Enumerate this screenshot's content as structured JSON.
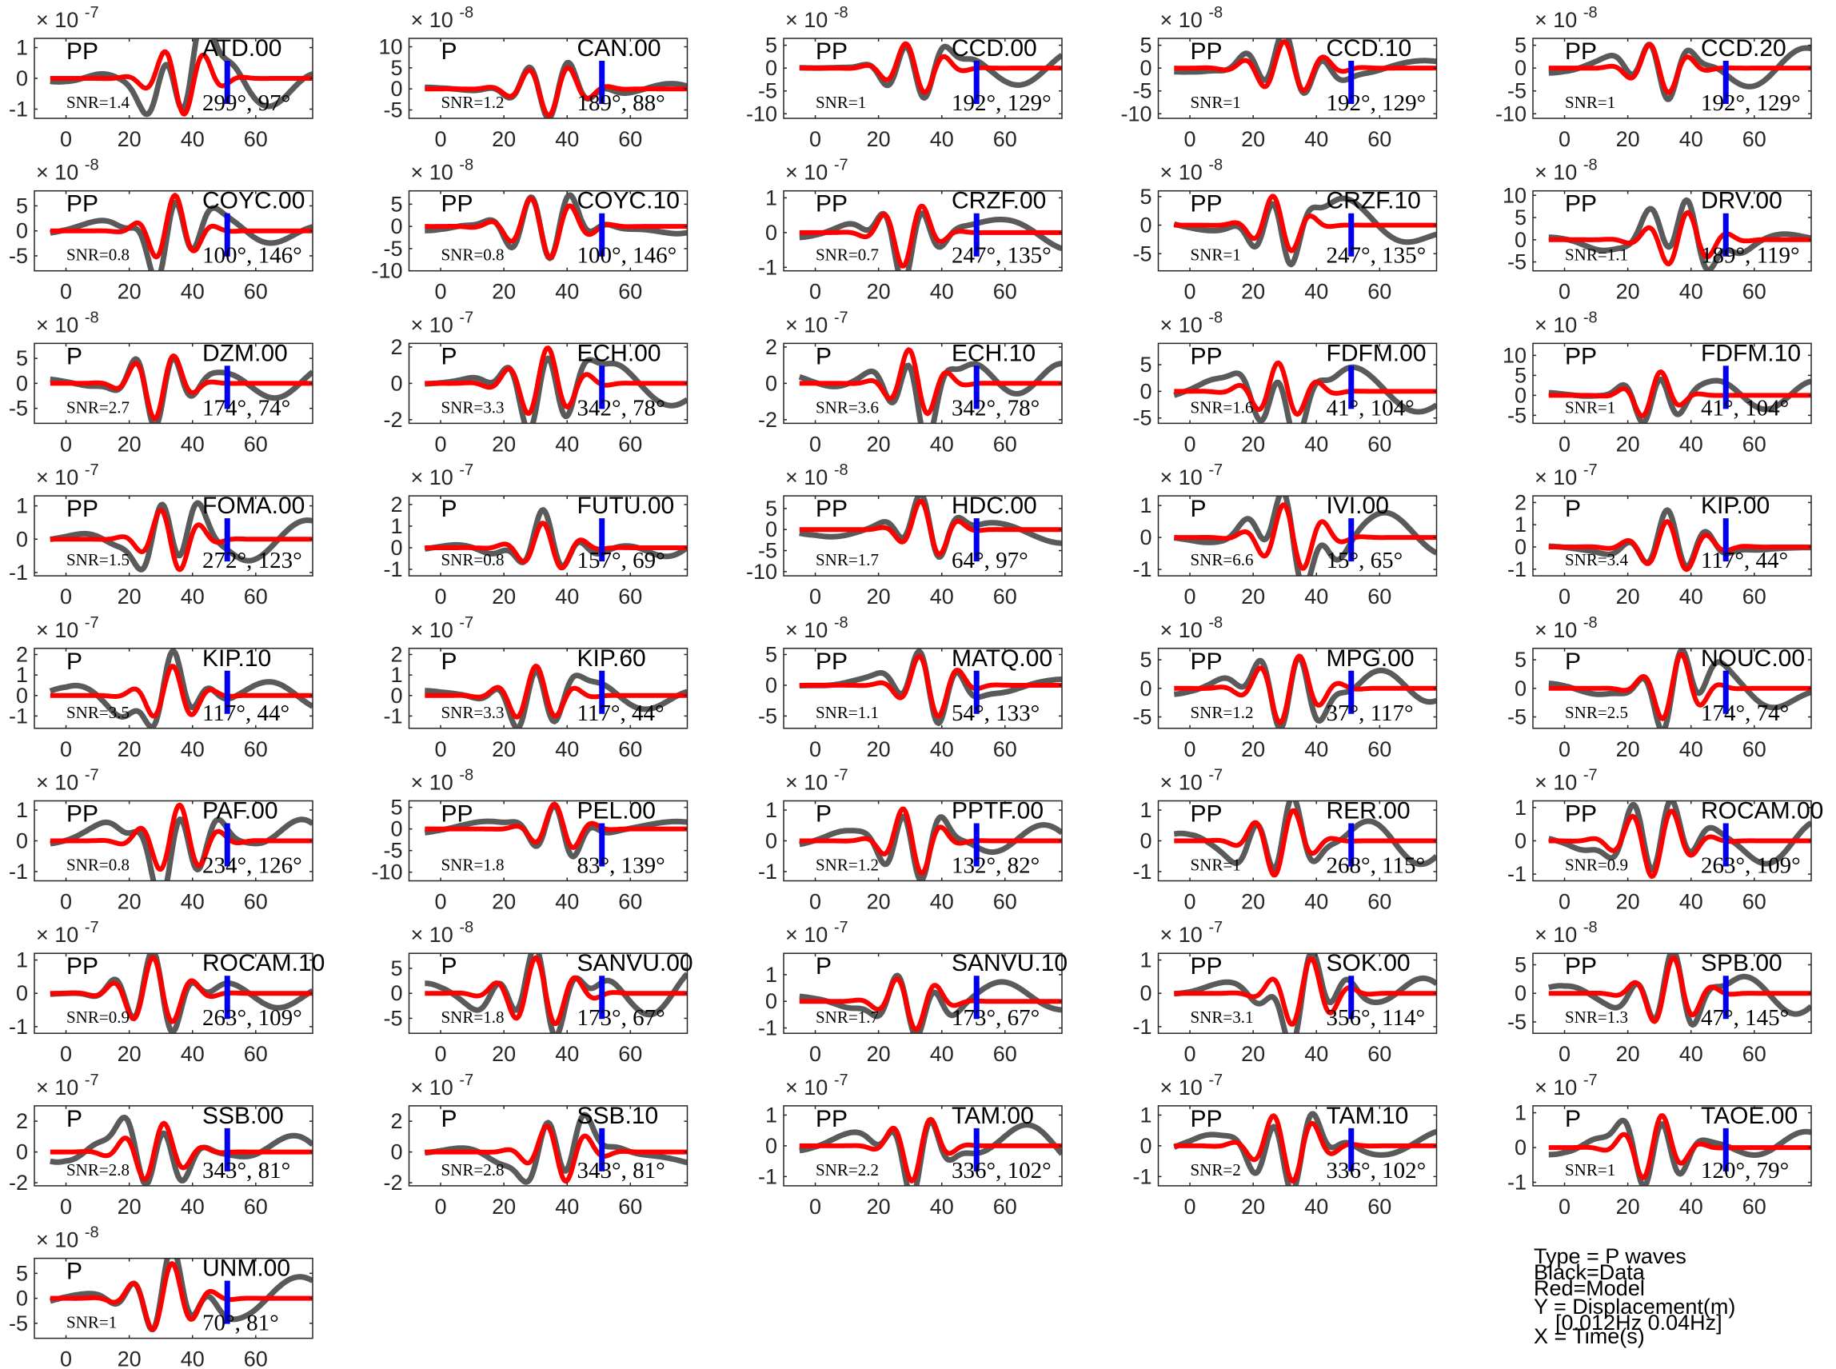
{
  "chart_data": {
    "type": "line",
    "xlabel": "",
    "ylabel": "",
    "xlim": [
      -10,
      78
    ],
    "x_ticks": [
      0,
      20,
      40,
      60
    ],
    "colors": {
      "data": "#5a5a5a",
      "model": "#ff0000",
      "marker": "#0000ee",
      "axes": "#262626"
    },
    "legend": {
      "placement": "bottom-right",
      "lines": [
        "Type = P waves",
        "Black=Data",
        "Red=Model",
        "Y = Displacement(m)",
        "[0.012Hz 0.04Hz]",
        "X = Time(s)"
      ]
    },
    "panels": [
      {
        "station": "ATD.00",
        "phase": "PP",
        "snr": "SNR=1.4",
        "az": "299°, 97°",
        "exp": "-7",
        "yticks": [
          -1,
          0,
          1
        ],
        "ylim": [
          -1.3,
          1.3
        ]
      },
      {
        "station": "CAN.00",
        "phase": "P",
        "snr": "SNR=1.2",
        "az": "189°, 88°",
        "exp": "-8",
        "yticks": [
          -5,
          0,
          5,
          10
        ],
        "ylim": [
          -7,
          12
        ]
      },
      {
        "station": "CCD.00",
        "phase": "PP",
        "snr": "SNR=1",
        "az": "192°, 129°",
        "exp": "-8",
        "yticks": [
          -10,
          -5,
          0,
          5
        ],
        "ylim": [
          -11,
          6.5
        ]
      },
      {
        "station": "CCD.10",
        "phase": "PP",
        "snr": "SNR=1",
        "az": "192°, 129°",
        "exp": "-8",
        "yticks": [
          -10,
          -5,
          0,
          5
        ],
        "ylim": [
          -11,
          6.5
        ]
      },
      {
        "station": "CCD.20",
        "phase": "PP",
        "snr": "SNR=1",
        "az": "192°, 129°",
        "exp": "-8",
        "yticks": [
          -10,
          -5,
          0,
          5
        ],
        "ylim": [
          -11,
          6.5
        ]
      },
      {
        "station": "COYC.00",
        "phase": "PP",
        "snr": "SNR=0.8",
        "az": "100°, 146°",
        "exp": "-8",
        "yticks": [
          -5,
          0,
          5
        ],
        "ylim": [
          -8,
          8
        ]
      },
      {
        "station": "COYC.10",
        "phase": "PP",
        "snr": "SNR=0.8",
        "az": "100°, 146°",
        "exp": "-8",
        "yticks": [
          -10,
          -5,
          0,
          5
        ],
        "ylim": [
          -10,
          8
        ]
      },
      {
        "station": "CRZF.00",
        "phase": "PP",
        "snr": "SNR=0.7",
        "az": "247°, 135°",
        "exp": "-7",
        "yticks": [
          -1,
          0,
          1
        ],
        "ylim": [
          -1.1,
          1.2
        ]
      },
      {
        "station": "CRZF.10",
        "phase": "PP",
        "snr": "SNR=1",
        "az": "247°, 135°",
        "exp": "-8",
        "yticks": [
          -5,
          0,
          5
        ],
        "ylim": [
          -8,
          6
        ]
      },
      {
        "station": "DRV.00",
        "phase": "PP",
        "snr": "SNR=1.1",
        "az": "189°, 119°",
        "exp": "-8",
        "yticks": [
          -5,
          0,
          5,
          10
        ],
        "ylim": [
          -7,
          11
        ]
      },
      {
        "station": "DZM.00",
        "phase": "P",
        "snr": "SNR=2.7",
        "az": "174°, 74°",
        "exp": "-8",
        "yticks": [
          -5,
          0,
          5
        ],
        "ylim": [
          -8,
          8
        ]
      },
      {
        "station": "ECH.00",
        "phase": "P",
        "snr": "SNR=3.3",
        "az": "342°, 78°",
        "exp": "-7",
        "yticks": [
          -2,
          0,
          2
        ],
        "ylim": [
          -2.2,
          2.2
        ]
      },
      {
        "station": "ECH.10",
        "phase": "P",
        "snr": "SNR=3.6",
        "az": "342°, 78°",
        "exp": "-7",
        "yticks": [
          -2,
          0,
          2
        ],
        "ylim": [
          -2.2,
          2.2
        ]
      },
      {
        "station": "FDFM.00",
        "phase": "PP",
        "snr": "SNR=1.6",
        "az": "41°, 104°",
        "exp": "-8",
        "yticks": [
          -5,
          0,
          5
        ],
        "ylim": [
          -6,
          9
        ]
      },
      {
        "station": "FDFM.10",
        "phase": "PP",
        "snr": "SNR=1",
        "az": "41°, 104°",
        "exp": "-8",
        "yticks": [
          -5,
          0,
          5,
          10
        ],
        "ylim": [
          -7,
          13
        ]
      },
      {
        "station": "FOMA.00",
        "phase": "PP",
        "snr": "SNR=1.5",
        "az": "272°, 123°",
        "exp": "-7",
        "yticks": [
          -1,
          0,
          1
        ],
        "ylim": [
          -1.1,
          1.3
        ]
      },
      {
        "station": "FUTU.00",
        "phase": "P",
        "snr": "SNR=0.8",
        "az": "157°, 69°",
        "exp": "-7",
        "yticks": [
          -1,
          0,
          1,
          2
        ],
        "ylim": [
          -1.3,
          2.4
        ]
      },
      {
        "station": "HDC.00",
        "phase": "PP",
        "snr": "SNR=1.7",
        "az": "64°, 97°",
        "exp": "-8",
        "yticks": [
          -10,
          -5,
          0,
          5
        ],
        "ylim": [
          -11,
          8
        ]
      },
      {
        "station": "IVI.00",
        "phase": "P",
        "snr": "SNR=6.6",
        "az": "15°, 65°",
        "exp": "-7",
        "yticks": [
          -1,
          0,
          1
        ],
        "ylim": [
          -1.2,
          1.3
        ]
      },
      {
        "station": "KIP.00",
        "phase": "P",
        "snr": "SNR=3.4",
        "az": "117°, 44°",
        "exp": "-7",
        "yticks": [
          -1,
          0,
          1,
          2
        ],
        "ylim": [
          -1.3,
          2.3
        ]
      },
      {
        "station": "KIP.10",
        "phase": "P",
        "snr": "SNR=3.5",
        "az": "117°, 44°",
        "exp": "-7",
        "yticks": [
          -1,
          0,
          1,
          2
        ],
        "ylim": [
          -1.6,
          2.3
        ]
      },
      {
        "station": "KIP.60",
        "phase": "P",
        "snr": "SNR=3.3",
        "az": "117°, 44°",
        "exp": "-7",
        "yticks": [
          -1,
          0,
          1,
          2
        ],
        "ylim": [
          -1.6,
          2.3
        ]
      },
      {
        "station": "MATQ.00",
        "phase": "PP",
        "snr": "SNR=1.1",
        "az": "54°, 133°",
        "exp": "-8",
        "yticks": [
          -5,
          0,
          5
        ],
        "ylim": [
          -7,
          6
        ]
      },
      {
        "station": "MPG.00",
        "phase": "PP",
        "snr": "SNR=1.2",
        "az": "37°, 117°",
        "exp": "-8",
        "yticks": [
          -5,
          0,
          5
        ],
        "ylim": [
          -7,
          7
        ]
      },
      {
        "station": "NOUC.00",
        "phase": "P",
        "snr": "SNR=2.5",
        "az": "174°, 74°",
        "exp": "-8",
        "yticks": [
          -5,
          0,
          5
        ],
        "ylim": [
          -7,
          7
        ]
      },
      {
        "station": "PAF.00",
        "phase": "PP",
        "snr": "SNR=0.8",
        "az": "234°, 126°",
        "exp": "-7",
        "yticks": [
          -1,
          0,
          1
        ],
        "ylim": [
          -1.3,
          1.3
        ]
      },
      {
        "station": "PEL.00",
        "phase": "PP",
        "snr": "SNR=1.8",
        "az": "83°, 139°",
        "exp": "-8",
        "yticks": [
          -10,
          -5,
          0,
          5
        ],
        "ylim": [
          -12,
          6.5
        ]
      },
      {
        "station": "PPTF.00",
        "phase": "P",
        "snr": "SNR=1.2",
        "az": "132°, 82°",
        "exp": "-7",
        "yticks": [
          -1,
          0,
          1
        ],
        "ylim": [
          -1.3,
          1.3
        ]
      },
      {
        "station": "RER.00",
        "phase": "PP",
        "snr": "SNR=1",
        "az": "268°, 115°",
        "exp": "-7",
        "yticks": [
          -1,
          0,
          1
        ],
        "ylim": [
          -1.3,
          1.3
        ]
      },
      {
        "station": "ROCAM.00",
        "phase": "PP",
        "snr": "SNR=0.9",
        "az": "263°, 109°",
        "exp": "-7",
        "yticks": [
          -1,
          0,
          1
        ],
        "ylim": [
          -1.2,
          1.2
        ]
      },
      {
        "station": "ROCAM.10",
        "phase": "PP",
        "snr": "SNR=0.9",
        "az": "263°, 109°",
        "exp": "-7",
        "yticks": [
          -1,
          0,
          1
        ],
        "ylim": [
          -1.2,
          1.2
        ]
      },
      {
        "station": "SANVU.00",
        "phase": "P",
        "snr": "SNR=1.8",
        "az": "173°, 67°",
        "exp": "-8",
        "yticks": [
          -5,
          0,
          5
        ],
        "ylim": [
          -8,
          8
        ]
      },
      {
        "station": "SANVU.10",
        "phase": "P",
        "snr": "SNR=1.7",
        "az": "173°, 67°",
        "exp": "-7",
        "yticks": [
          -1,
          0,
          1
        ],
        "ylim": [
          -1.2,
          1.8
        ]
      },
      {
        "station": "SOK.00",
        "phase": "PP",
        "snr": "SNR=3.1",
        "az": "356°, 114°",
        "exp": "-7",
        "yticks": [
          -1,
          0,
          1
        ],
        "ylim": [
          -1.2,
          1.2
        ]
      },
      {
        "station": "SPB.00",
        "phase": "PP",
        "snr": "SNR=1.3",
        "az": "47°, 145°",
        "exp": "-8",
        "yticks": [
          -5,
          0,
          5
        ],
        "ylim": [
          -7,
          7
        ]
      },
      {
        "station": "SSB.00",
        "phase": "P",
        "snr": "SNR=2.8",
        "az": "343°, 81°",
        "exp": "-7",
        "yticks": [
          -2,
          0,
          2
        ],
        "ylim": [
          -2.2,
          3.0
        ]
      },
      {
        "station": "SSB.10",
        "phase": "P",
        "snr": "SNR=2.8",
        "az": "343°, 81°",
        "exp": "-7",
        "yticks": [
          -2,
          0,
          2
        ],
        "ylim": [
          -2.2,
          3.0
        ]
      },
      {
        "station": "TAM.00",
        "phase": "PP",
        "snr": "SNR=2.2",
        "az": "336°, 102°",
        "exp": "-7",
        "yticks": [
          -1,
          0,
          1
        ],
        "ylim": [
          -1.3,
          1.3
        ]
      },
      {
        "station": "TAM.10",
        "phase": "PP",
        "snr": "SNR=2",
        "az": "336°, 102°",
        "exp": "-7",
        "yticks": [
          -1,
          0,
          1
        ],
        "ylim": [
          -1.3,
          1.3
        ]
      },
      {
        "station": "TAOE.00",
        "phase": "P",
        "snr": "SNR=1",
        "az": "120°, 79°",
        "exp": "-7",
        "yticks": [
          -1,
          0,
          1
        ],
        "ylim": [
          -1.1,
          1.2
        ]
      },
      {
        "station": "UNM.00",
        "phase": "P",
        "snr": "SNR=1",
        "az": "70°, 81°",
        "exp": "-8",
        "yticks": [
          -5,
          0,
          5
        ],
        "ylim": [
          -8,
          8
        ]
      }
    ]
  }
}
